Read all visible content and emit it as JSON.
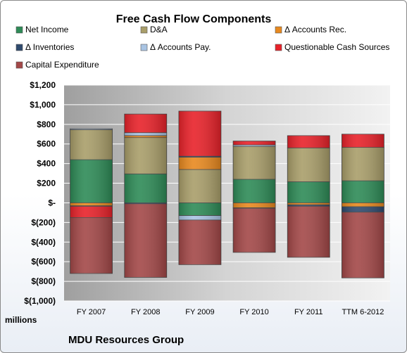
{
  "chart_data": {
    "type": "bar",
    "stacked": true,
    "title": "Free Cash Flow Components",
    "ylabel": "millions",
    "caption": "MDU Resources Group",
    "categories": [
      "FY 2007",
      "FY 2008",
      "FY 2009",
      "FY 2010",
      "FY 2011",
      "TTM 6-2012"
    ],
    "ylim": [
      -1000,
      1200
    ],
    "yticks": [
      1200,
      1000,
      800,
      600,
      400,
      200,
      0,
      -200,
      -400,
      -600,
      -800,
      -1000
    ],
    "ytick_labels": [
      "$1,200",
      "$1,000",
      "$800",
      "$600",
      "$400",
      "$200",
      "$-",
      "$(200)",
      "$(400)",
      "$(600)",
      "$(800)",
      "$(1,000)"
    ],
    "grid": true,
    "legend_position": "top",
    "series": [
      {
        "name": "Net Income",
        "color": "#2e8b57",
        "values": [
          440,
          295,
          -130,
          240,
          215,
          225
        ]
      },
      {
        "name": "D&A",
        "color": "#a99e6a",
        "values": [
          305,
          370,
          340,
          335,
          345,
          340
        ]
      },
      {
        "name": "Δ Accounts Rec.",
        "color": "#e8891f",
        "values": [
          -30,
          20,
          125,
          -50,
          -20,
          -40
        ]
      },
      {
        "name": "Δ Inventories",
        "color": "#2f4a6e",
        "values": [
          -5,
          -10,
          10,
          -5,
          -15,
          -55
        ]
      },
      {
        "name": "Δ Accounts Pay.",
        "color": "#a9c4e3",
        "values": [
          10,
          30,
          -45,
          15,
          0,
          0
        ]
      },
      {
        "name": "Questionable Cash Sources",
        "color": "#e8222a",
        "values": [
          -115,
          190,
          460,
          40,
          125,
          135
        ]
      },
      {
        "name": "Capital Expenditure",
        "color": "#a34848",
        "values": [
          -570,
          -750,
          -455,
          -450,
          -520,
          -670
        ]
      }
    ]
  }
}
